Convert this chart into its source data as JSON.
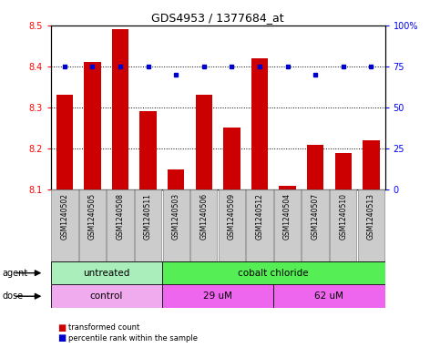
{
  "title": "GDS4953 / 1377684_at",
  "samples": [
    "GSM1240502",
    "GSM1240505",
    "GSM1240508",
    "GSM1240511",
    "GSM1240503",
    "GSM1240506",
    "GSM1240509",
    "GSM1240512",
    "GSM1240504",
    "GSM1240507",
    "GSM1240510",
    "GSM1240513"
  ],
  "bar_values": [
    8.33,
    8.41,
    8.49,
    8.29,
    8.15,
    8.33,
    8.25,
    8.42,
    8.11,
    8.21,
    8.19,
    8.22
  ],
  "dot_values": [
    75,
    75,
    75,
    75,
    70,
    75,
    75,
    75,
    75,
    70,
    75,
    75
  ],
  "ymin": 8.1,
  "ymax": 8.5,
  "y2min": 0,
  "y2max": 100,
  "yticks": [
    8.1,
    8.2,
    8.3,
    8.4,
    8.5
  ],
  "y2ticks": [
    0,
    25,
    50,
    75,
    100
  ],
  "y2ticklabels": [
    "0",
    "25",
    "50",
    "75",
    "100%"
  ],
  "bar_color": "#cc0000",
  "dot_color": "#0000cc",
  "agent_groups": [
    {
      "label": "untreated",
      "start": 0,
      "end": 4,
      "color": "#aaeebb"
    },
    {
      "label": "cobalt chloride",
      "start": 4,
      "end": 12,
      "color": "#55ee55"
    }
  ],
  "dose_groups": [
    {
      "label": "control",
      "start": 0,
      "end": 4,
      "color": "#f0aaee"
    },
    {
      "label": "29 uM",
      "start": 4,
      "end": 8,
      "color": "#ee66ee"
    },
    {
      "label": "62 uM",
      "start": 8,
      "end": 12,
      "color": "#ee66ee"
    }
  ],
  "legend_items": [
    {
      "label": "transformed count",
      "color": "#cc0000"
    },
    {
      "label": "percentile rank within the sample",
      "color": "#0000cc"
    }
  ],
  "sample_box_color": "#cccccc",
  "agent_label": "agent",
  "dose_label": "dose"
}
